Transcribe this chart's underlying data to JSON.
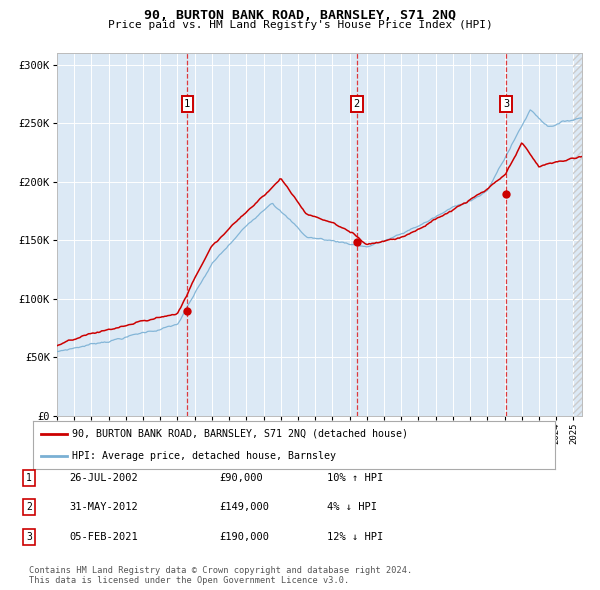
{
  "title": "90, BURTON BANK ROAD, BARNSLEY, S71 2NQ",
  "subtitle": "Price paid vs. HM Land Registry's House Price Index (HPI)",
  "legend_label_red": "90, BURTON BANK ROAD, BARNSLEY, S71 2NQ (detached house)",
  "legend_label_blue": "HPI: Average price, detached house, Barnsley",
  "footnote": "Contains HM Land Registry data © Crown copyright and database right 2024.\nThis data is licensed under the Open Government Licence v3.0.",
  "transactions": [
    {
      "num": 1,
      "date": "26-JUL-2002",
      "price": 90000,
      "year": 2002.57,
      "pct": "10%",
      "dir": "↑"
    },
    {
      "num": 2,
      "date": "31-MAY-2012",
      "price": 149000,
      "year": 2012.42,
      "pct": "4%",
      "dir": "↓"
    },
    {
      "num": 3,
      "date": "05-FEB-2021",
      "price": 190000,
      "year": 2021.09,
      "pct": "12%",
      "dir": "↓"
    }
  ],
  "bg_color": "#dce9f5",
  "line_color_red": "#cc0000",
  "line_color_blue": "#7ab0d4",
  "grid_color": "#ffffff",
  "ylim": [
    0,
    310000
  ],
  "xlim_start": 1995.0,
  "xlim_end": 2025.5,
  "hatch_start": 2025.0,
  "trans_years": [
    2002.57,
    2012.42,
    2021.09
  ],
  "trans_prices": [
    90000,
    149000,
    190000
  ]
}
